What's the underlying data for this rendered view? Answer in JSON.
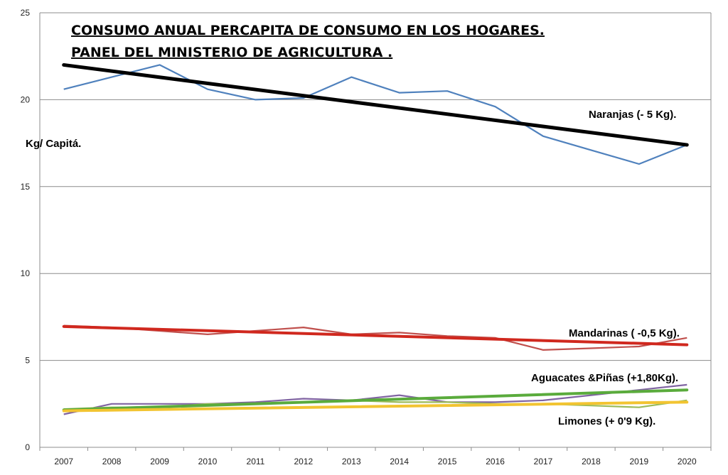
{
  "chart_data": {
    "type": "line",
    "title": "CONSUMO ANUAL PERCAPITA DE CONSUMO EN LOS HOGARES.",
    "subtitle": "PANEL DEL MINISTERIO DE AGRICULTURA .",
    "ylabel": "Kg/ Capitá.",
    "xlabel": "",
    "ylim": [
      0,
      25
    ],
    "yticks": [
      "0",
      "5",
      "10",
      "15",
      "20",
      "25"
    ],
    "x": [
      "2007",
      "2008",
      "2009",
      "2010",
      "2011",
      "2012",
      "2013",
      "2014",
      "2015",
      "2016",
      "2017",
      "2018",
      "2019",
      "2020"
    ],
    "grid": true,
    "legend": "none",
    "series": [
      {
        "name": "Naranjas",
        "color": "#4f81bd",
        "values": [
          20.6,
          21.3,
          22.0,
          20.6,
          20.0,
          20.1,
          21.3,
          20.4,
          20.5,
          19.6,
          17.9,
          17.1,
          16.3,
          17.4
        ]
      },
      {
        "name": "Mandarinas",
        "color": "#c0504d",
        "values": [
          7.0,
          6.9,
          6.7,
          6.5,
          6.7,
          6.9,
          6.5,
          6.6,
          6.4,
          6.3,
          5.6,
          5.7,
          5.8,
          6.3
        ]
      },
      {
        "name": "Aguacates &Piñas",
        "color": "#8064a2",
        "values": [
          1.9,
          2.5,
          2.5,
          2.5,
          2.6,
          2.8,
          2.7,
          3.0,
          2.6,
          2.6,
          2.7,
          3.0,
          3.3,
          3.6
        ]
      },
      {
        "name": "Limones",
        "color": "#9bbb59",
        "values": [
          2.2,
          2.3,
          2.3,
          2.5,
          2.5,
          2.6,
          2.7,
          2.6,
          2.6,
          2.5,
          2.5,
          2.4,
          2.3,
          2.7
        ]
      }
    ],
    "trendlines": [
      {
        "series": "Naranjas",
        "color": "#000000",
        "start": 22.0,
        "end": 17.4,
        "label": "Naranjas  (- 5 Kg)."
      },
      {
        "series": "Mandarinas",
        "color": "#d0281e",
        "start": 6.95,
        "end": 5.9,
        "label": "Mandarinas ( -0,5 Kg)."
      },
      {
        "series": "Aguacates &Piñas",
        "color": "#5aab3c",
        "start": 2.15,
        "end": 3.3,
        "label": "Aguacates &Piñas (+1,80Kg)."
      },
      {
        "series": "Limones",
        "color": "#f2c431",
        "start": 2.1,
        "end": 2.6,
        "label": "Limones (+ 0'9 Kg)."
      }
    ]
  }
}
